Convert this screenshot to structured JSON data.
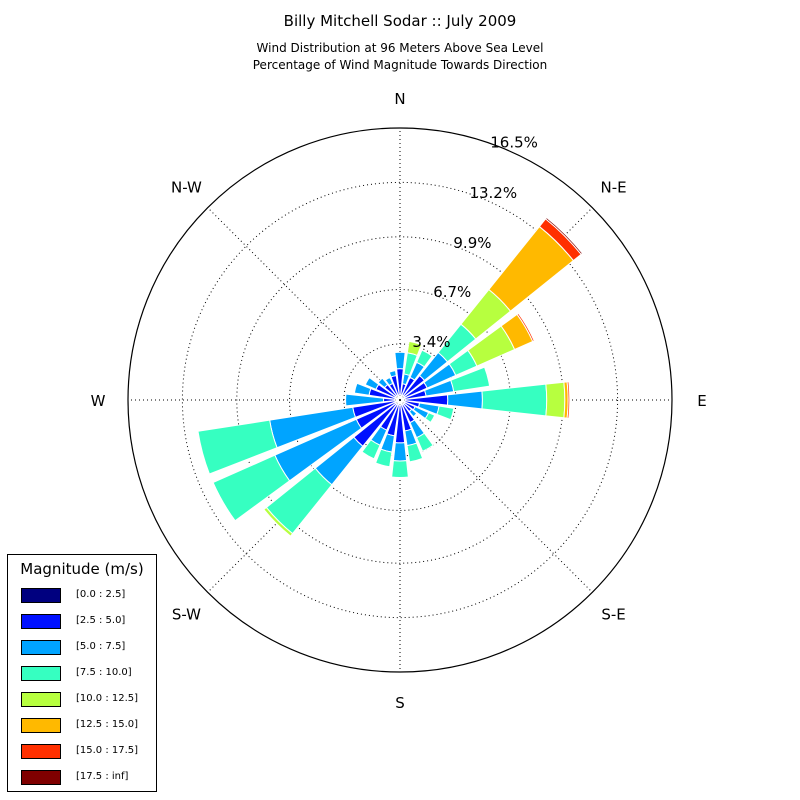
{
  "title": "Billy Mitchell Sodar :: July 2009",
  "subtitle_lines": [
    "Wind Distribution at 96 Meters Above Sea Level",
    "Percentage of Wind Magnitude Towards Direction"
  ],
  "legend": {
    "title": "Magnitude (m/s)",
    "items": [
      {
        "label": "[0.0 : 2.5]",
        "color": "#00007f"
      },
      {
        "label": "[2.5 : 5.0]",
        "color": "#0010ff"
      },
      {
        "label": "[5.0 : 7.5]",
        "color": "#00a4ff"
      },
      {
        "label": "[7.5 : 10.0]",
        "color": "#36ffc1"
      },
      {
        "label": "[10.0 : 12.5]",
        "color": "#b7ff3f"
      },
      {
        "label": "[12.5 : 15.0]",
        "color": "#ffb900"
      },
      {
        "label": "[15.0 : 17.5]",
        "color": "#ff3000"
      },
      {
        "label": "[17.5 : inf]",
        "color": "#7f0000"
      }
    ]
  },
  "chart_data": {
    "type": "windrose",
    "title": "Billy Mitchell Sodar :: July 2009",
    "subtitle": "Wind Distribution at 96 Meters Above Sea Level / Percentage of Wind Magnitude Towards Direction",
    "unit": "%",
    "radial_ticks": [
      3.4,
      6.7,
      9.9,
      13.2,
      16.5
    ],
    "radial_tick_labels": [
      "3.4%",
      "6.7%",
      "9.9%",
      "13.2%",
      "16.5%"
    ],
    "r_max": 16.5,
    "compass_labels": [
      {
        "label": "N",
        "angle": 0
      },
      {
        "label": "N-E",
        "angle": 45
      },
      {
        "label": "E",
        "angle": 90
      },
      {
        "label": "S-E",
        "angle": 135
      },
      {
        "label": "S",
        "angle": 180
      },
      {
        "label": "S-W",
        "angle": 225
      },
      {
        "label": "W",
        "angle": 270
      },
      {
        "label": "N-W",
        "angle": 315
      }
    ],
    "bins": [
      "[0.0 : 2.5]",
      "[2.5 : 5.0]",
      "[5.0 : 7.5]",
      "[7.5 : 10.0]",
      "[10.0 : 12.5]",
      "[12.5 : 15.0]",
      "[15.0 : 17.5]",
      "[17.5 : inf]"
    ],
    "sectors": [
      {
        "direction": 0,
        "cumulative": [
          0.3,
          1.9,
          2.9
        ]
      },
      {
        "direction": 15,
        "cumulative": [
          0.3,
          1.0,
          1.6,
          2.9,
          3.6
        ]
      },
      {
        "direction": 30,
        "cumulative": [
          0.3,
          1.5,
          2.5,
          3.3
        ]
      },
      {
        "direction": 45,
        "cumulative": [
          0.3,
          1.9,
          3.7,
          5.9,
          8.6,
          13.5,
          14.1,
          14.2
        ]
      },
      {
        "direction": 60,
        "cumulative": [
          0.3,
          1.8,
          3.7,
          5.1,
          7.6,
          8.8,
          8.9
        ]
      },
      {
        "direction": 75,
        "cumulative": [
          0.3,
          1.6,
          3.3,
          5.5
        ]
      },
      {
        "direction": 90,
        "cumulative": [
          0.3,
          2.9,
          5.0,
          8.9,
          10.0,
          10.2,
          10.3
        ]
      },
      {
        "direction": 105,
        "cumulative": [
          0.3,
          1.2,
          2.4,
          3.3
        ]
      },
      {
        "direction": 120,
        "cumulative": [
          0.3,
          1.0,
          1.9,
          2.3
        ]
      },
      {
        "direction": 135,
        "cumulative": [
          0.3,
          0.9,
          1.3
        ]
      },
      {
        "direction": 150,
        "cumulative": [
          0.3,
          1.5,
          2.5,
          3.4
        ]
      },
      {
        "direction": 165,
        "cumulative": [
          0.3,
          1.9,
          2.8,
          3.8
        ]
      },
      {
        "direction": 180,
        "cumulative": [
          0.3,
          2.6,
          3.7,
          4.7
        ]
      },
      {
        "direction": 195,
        "cumulative": [
          0.3,
          2.2,
          3.2,
          4.1
        ]
      },
      {
        "direction": 210,
        "cumulative": [
          0.3,
          2.0,
          3.0,
          3.9
        ]
      },
      {
        "direction": 225,
        "cumulative": [
          0.3,
          3.6,
          6.6,
          10.4,
          10.6
        ]
      },
      {
        "direction": 240,
        "cumulative": [
          0.3,
          2.9,
          8.3,
          12.4,
          12.45
        ]
      },
      {
        "direction": 255,
        "cumulative": [
          0.3,
          2.9,
          8.0,
          12.4
        ]
      },
      {
        "direction": 270,
        "cumulative": [
          0.3,
          1.0,
          3.3
        ]
      },
      {
        "direction": 285,
        "cumulative": [
          0.3,
          1.9,
          2.8
        ]
      },
      {
        "direction": 300,
        "cumulative": [
          0.3,
          1.6,
          2.3
        ]
      },
      {
        "direction": 315,
        "cumulative": [
          0.3,
          1.2,
          1.7
        ]
      },
      {
        "direction": 330,
        "cumulative": [
          0.3,
          1.1,
          1.5
        ]
      },
      {
        "direction": 345,
        "cumulative": [
          0.3,
          1.5,
          1.8
        ]
      }
    ],
    "legend_placement": "bottom-left",
    "grid": true
  }
}
